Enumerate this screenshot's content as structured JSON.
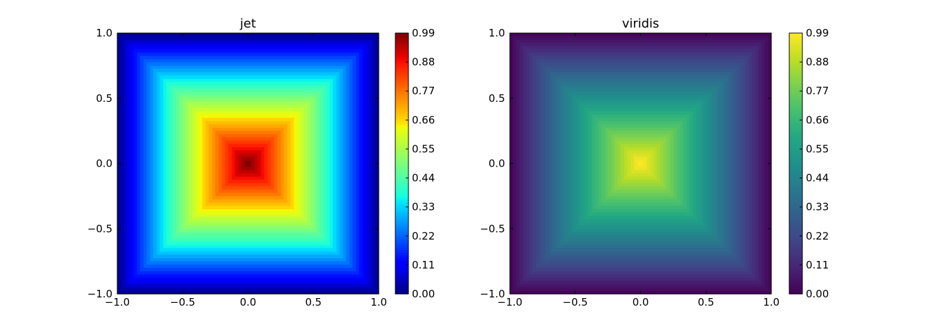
{
  "chart_data": [
    {
      "type": "heatmap",
      "title": "jet",
      "colormap": "jet",
      "function": "1 - max(|x|, |y|)",
      "xlim": [
        -1.0,
        1.0
      ],
      "ylim": [
        -1.0,
        1.0
      ],
      "xticks": [
        "−1.0",
        "−0.5",
        "0.0",
        "0.5",
        "1.0"
      ],
      "xtick_values": [
        -1.0,
        -0.5,
        0.0,
        0.5,
        1.0
      ],
      "yticks": [
        "1.0",
        "0.5",
        "0.0",
        "−0.5",
        "−1.0"
      ],
      "ytick_values": [
        1.0,
        0.5,
        0.0,
        -0.5,
        -1.0
      ],
      "colorbar": {
        "range": [
          0.0,
          0.99
        ],
        "ticks": [
          "0.99",
          "0.88",
          "0.77",
          "0.66",
          "0.55",
          "0.44",
          "0.33",
          "0.22",
          "0.11",
          "0.00"
        ],
        "tick_values": [
          0.99,
          0.88,
          0.77,
          0.66,
          0.55,
          0.44,
          0.33,
          0.22,
          0.11,
          0.0
        ]
      },
      "grid": false
    },
    {
      "type": "heatmap",
      "title": "viridis",
      "colormap": "viridis",
      "function": "1 - max(|x|, |y|)",
      "xlim": [
        -1.0,
        1.0
      ],
      "ylim": [
        -1.0,
        1.0
      ],
      "xticks": [
        "−1.0",
        "−0.5",
        "0.0",
        "0.5",
        "1.0"
      ],
      "xtick_values": [
        -1.0,
        -0.5,
        0.0,
        0.5,
        1.0
      ],
      "yticks": [
        "1.0",
        "0.5",
        "0.0",
        "−0.5",
        "−1.0"
      ],
      "ytick_values": [
        1.0,
        0.5,
        0.0,
        -0.5,
        -1.0
      ],
      "colorbar": {
        "range": [
          0.0,
          0.99
        ],
        "ticks": [
          "0.99",
          "0.88",
          "0.77",
          "0.66",
          "0.55",
          "0.44",
          "0.33",
          "0.22",
          "0.11",
          "0.00"
        ],
        "tick_values": [
          0.99,
          0.88,
          0.77,
          0.66,
          0.55,
          0.44,
          0.33,
          0.22,
          0.11,
          0.0
        ]
      },
      "grid": false
    }
  ]
}
